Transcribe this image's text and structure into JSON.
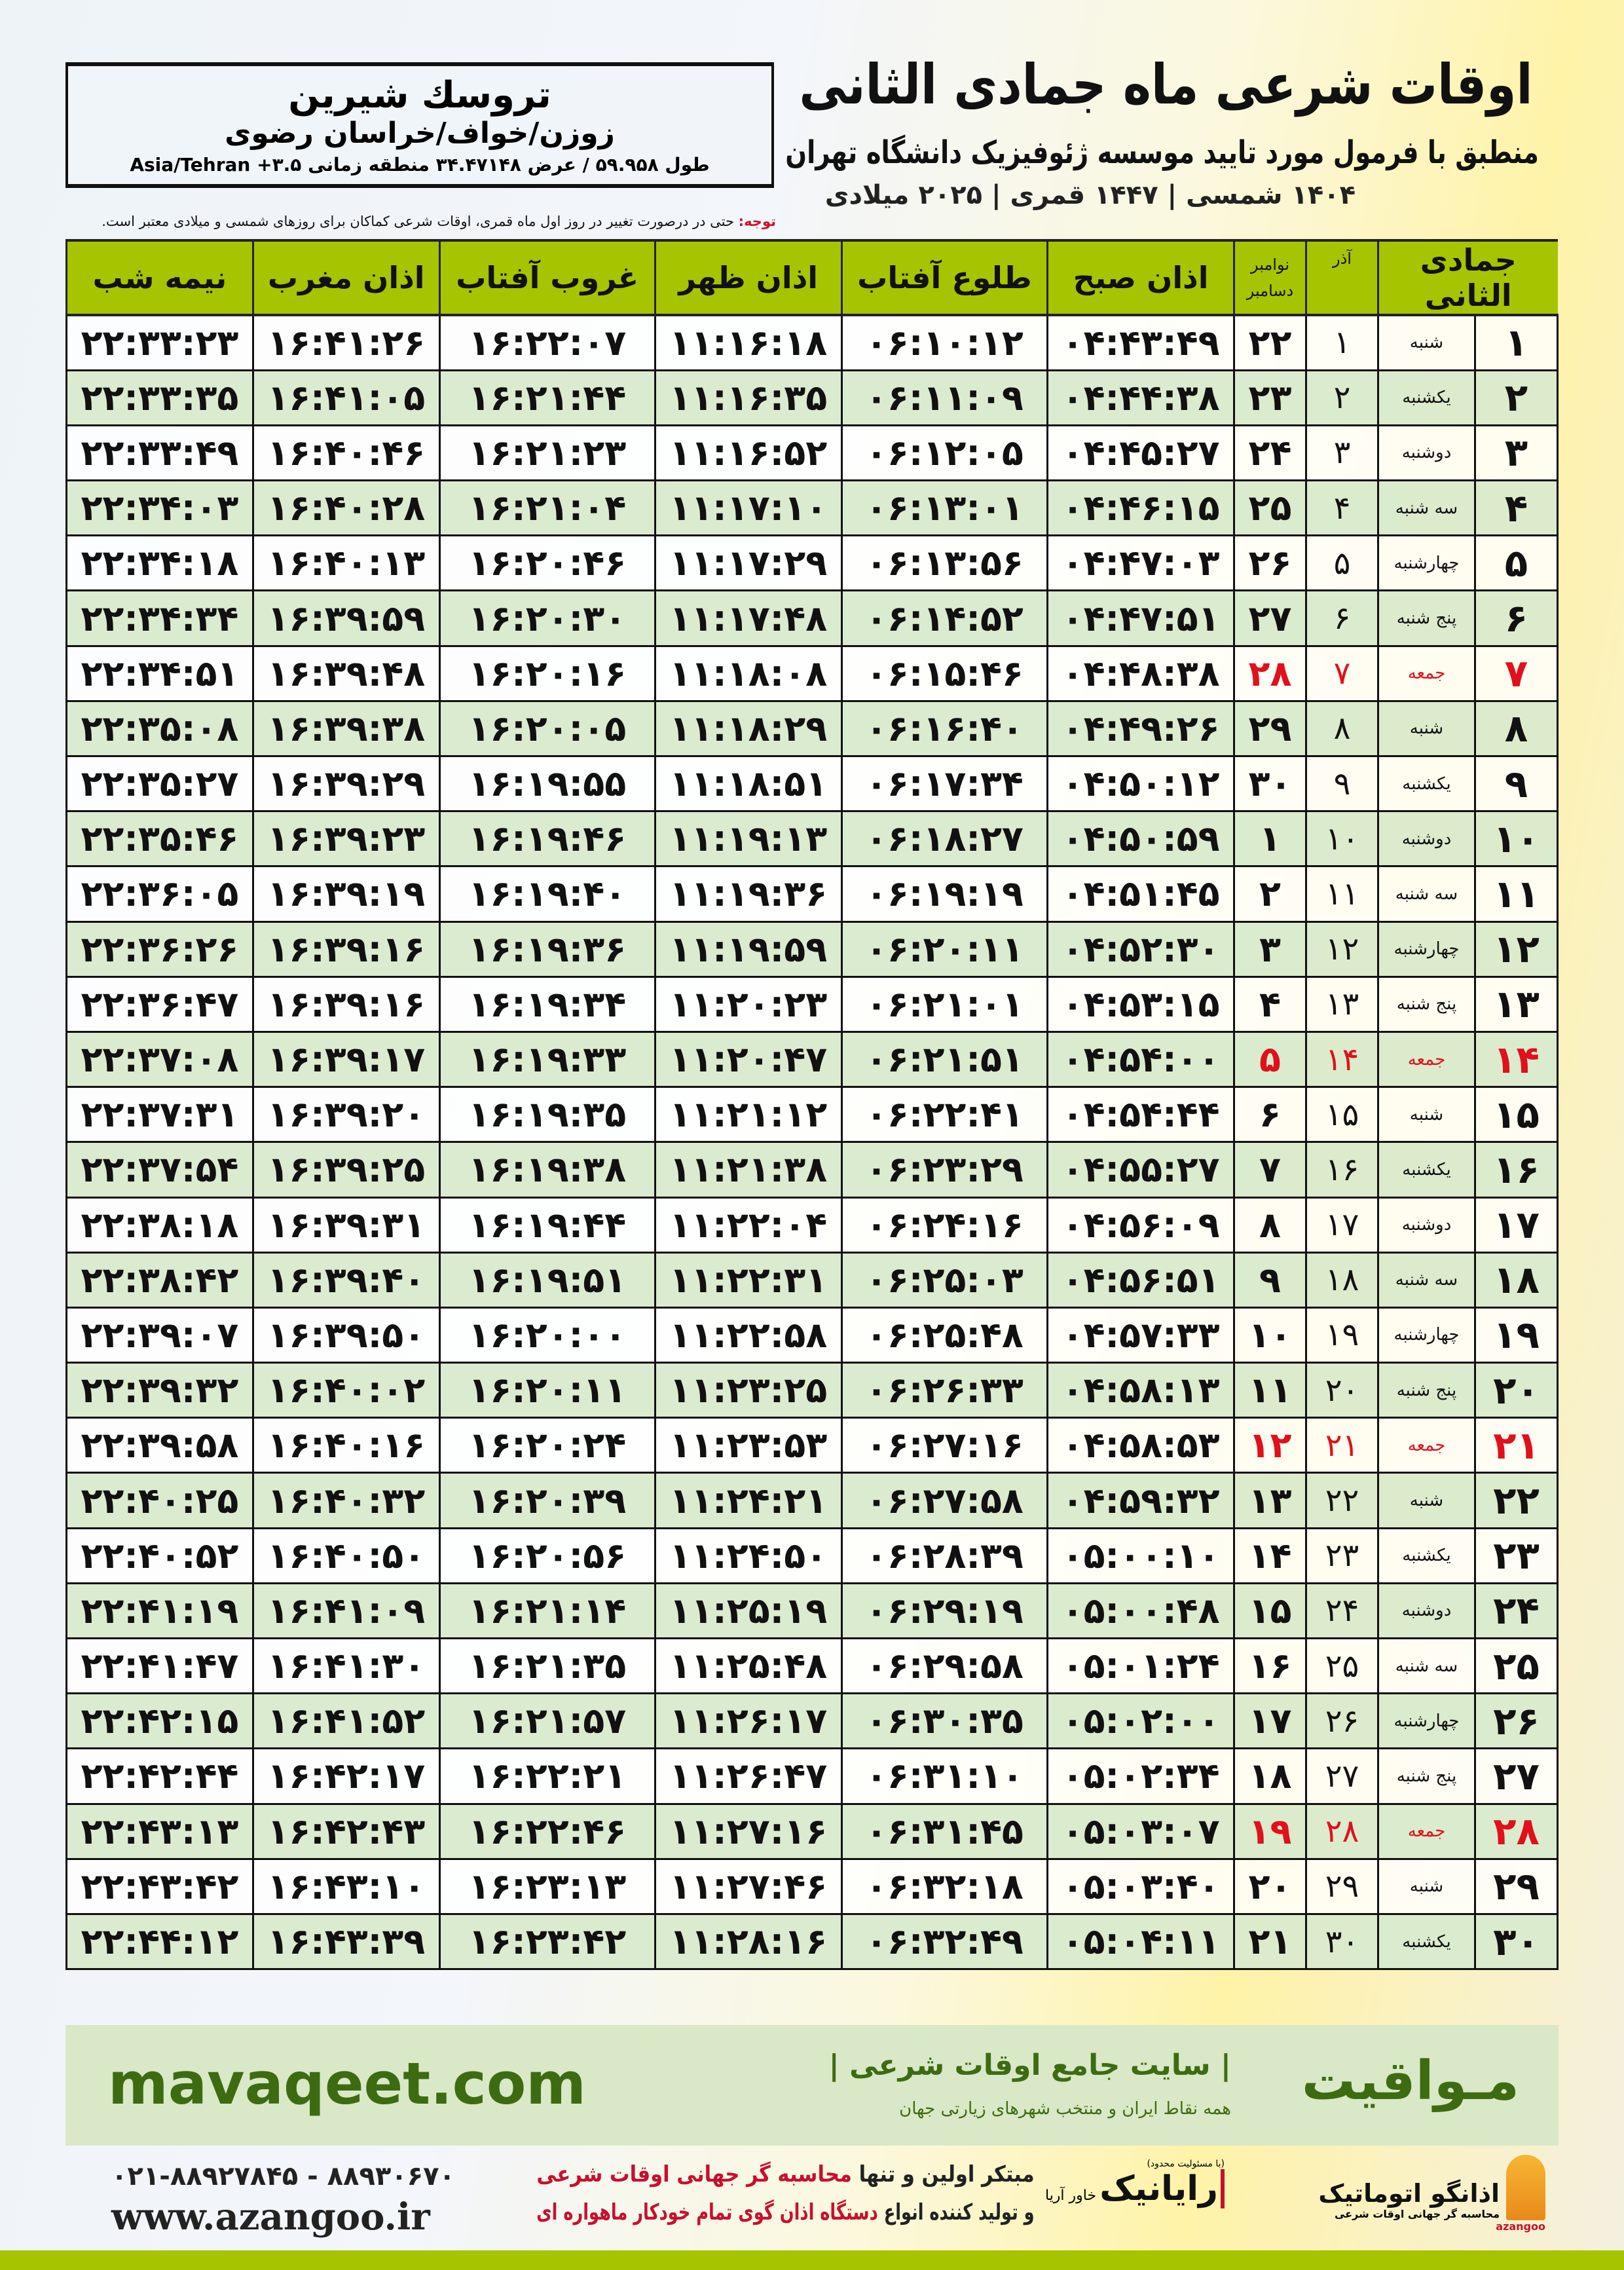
{
  "header": {
    "title": "اوقات شرعی ماه جمادی الثانی",
    "subtitle": "منطبق با فرمول مورد تایید موسسه ژئوفیزیک دانشگاه تهران",
    "dateline": "۱۴۰۴ شمسی | ۱۴۴۷ قمری | ۲۰۲۵ میلادی"
  },
  "location": {
    "city": "تروسك شيرين",
    "region": "زوزن/خواف/خراسان رضوی",
    "coords": "طول ۵۹.۹۵۸ / عرض ۳۴.۴۷۱۴۸ منطقه زمانی ۳.۵+ Asia/Tehran"
  },
  "note": {
    "label": "توجه:",
    "text": " حتی در درصورت تغییر در روز اول ماه قمری، اوقات شرعی کماکان برای روزهای شمسی و میلادی معتبر است."
  },
  "columns": {
    "hijri": "جمادی الثانی",
    "azar": "آذر",
    "greg_top": "نوامبر",
    "greg_bottom": "دسامبر",
    "sobh": "اذان صبح",
    "tolu": "طلوع آفتاب",
    "zohr": "اذان ظهر",
    "ghorub": "غروب آفتاب",
    "maghreb": "اذان مغرب",
    "nime": "نیمه شب"
  },
  "colors": {
    "header_green": "#a6c400",
    "row_alt": "#d9eacd",
    "holiday": "#e0101c",
    "footer_green": "#3d6b12"
  },
  "rows": [
    [
      "۱",
      "شنبه",
      "۱",
      "۲۲",
      "۰۴:۴۳:۴۹",
      "۰۶:۱۰:۱۲",
      "۱۱:۱۶:۱۸",
      "۱۶:۲۲:۰۷",
      "۱۶:۴۱:۲۶",
      "۲۲:۳۳:۲۳",
      false
    ],
    [
      "۲",
      "یکشنبه",
      "۲",
      "۲۳",
      "۰۴:۴۴:۳۸",
      "۰۶:۱۱:۰۹",
      "۱۱:۱۶:۳۵",
      "۱۶:۲۱:۴۴",
      "۱۶:۴۱:۰۵",
      "۲۲:۳۳:۳۵",
      false
    ],
    [
      "۳",
      "دوشنبه",
      "۳",
      "۲۴",
      "۰۴:۴۵:۲۷",
      "۰۶:۱۲:۰۵",
      "۱۱:۱۶:۵۲",
      "۱۶:۲۱:۲۳",
      "۱۶:۴۰:۴۶",
      "۲۲:۳۳:۴۹",
      false
    ],
    [
      "۴",
      "سه شنبه",
      "۴",
      "۲۵",
      "۰۴:۴۶:۱۵",
      "۰۶:۱۳:۰۱",
      "۱۱:۱۷:۱۰",
      "۱۶:۲۱:۰۴",
      "۱۶:۴۰:۲۸",
      "۲۲:۳۴:۰۳",
      false
    ],
    [
      "۵",
      "چهارشنبه",
      "۵",
      "۲۶",
      "۰۴:۴۷:۰۳",
      "۰۶:۱۳:۵۶",
      "۱۱:۱۷:۲۹",
      "۱۶:۲۰:۴۶",
      "۱۶:۴۰:۱۳",
      "۲۲:۳۴:۱۸",
      false
    ],
    [
      "۶",
      "پنج شنبه",
      "۶",
      "۲۷",
      "۰۴:۴۷:۵۱",
      "۰۶:۱۴:۵۲",
      "۱۱:۱۷:۴۸",
      "۱۶:۲۰:۳۰",
      "۱۶:۳۹:۵۹",
      "۲۲:۳۴:۳۴",
      false
    ],
    [
      "۷",
      "جمعه",
      "۷",
      "۲۸",
      "۰۴:۴۸:۳۸",
      "۰۶:۱۵:۴۶",
      "۱۱:۱۸:۰۸",
      "۱۶:۲۰:۱۶",
      "۱۶:۳۹:۴۸",
      "۲۲:۳۴:۵۱",
      true
    ],
    [
      "۸",
      "شنبه",
      "۸",
      "۲۹",
      "۰۴:۴۹:۲۶",
      "۰۶:۱۶:۴۰",
      "۱۱:۱۸:۲۹",
      "۱۶:۲۰:۰۵",
      "۱۶:۳۹:۳۸",
      "۲۲:۳۵:۰۸",
      false
    ],
    [
      "۹",
      "یکشنبه",
      "۹",
      "۳۰",
      "۰۴:۵۰:۱۲",
      "۰۶:۱۷:۳۴",
      "۱۱:۱۸:۵۱",
      "۱۶:۱۹:۵۵",
      "۱۶:۳۹:۲۹",
      "۲۲:۳۵:۲۷",
      false
    ],
    [
      "۱۰",
      "دوشنبه",
      "۱۰",
      "۱",
      "۰۴:۵۰:۵۹",
      "۰۶:۱۸:۲۷",
      "۱۱:۱۹:۱۳",
      "۱۶:۱۹:۴۶",
      "۱۶:۳۹:۲۳",
      "۲۲:۳۵:۴۶",
      false
    ],
    [
      "۱۱",
      "سه شنبه",
      "۱۱",
      "۲",
      "۰۴:۵۱:۴۵",
      "۰۶:۱۹:۱۹",
      "۱۱:۱۹:۳۶",
      "۱۶:۱۹:۴۰",
      "۱۶:۳۹:۱۹",
      "۲۲:۳۶:۰۵",
      false
    ],
    [
      "۱۲",
      "چهارشنبه",
      "۱۲",
      "۳",
      "۰۴:۵۲:۳۰",
      "۰۶:۲۰:۱۱",
      "۱۱:۱۹:۵۹",
      "۱۶:۱۹:۳۶",
      "۱۶:۳۹:۱۶",
      "۲۲:۳۶:۲۶",
      false
    ],
    [
      "۱۳",
      "پنج شنبه",
      "۱۳",
      "۴",
      "۰۴:۵۳:۱۵",
      "۰۶:۲۱:۰۱",
      "۱۱:۲۰:۲۳",
      "۱۶:۱۹:۳۴",
      "۱۶:۳۹:۱۶",
      "۲۲:۳۶:۴۷",
      false
    ],
    [
      "۱۴",
      "جمعه",
      "۱۴",
      "۵",
      "۰۴:۵۴:۰۰",
      "۰۶:۲۱:۵۱",
      "۱۱:۲۰:۴۷",
      "۱۶:۱۹:۳۳",
      "۱۶:۳۹:۱۷",
      "۲۲:۳۷:۰۸",
      true
    ],
    [
      "۱۵",
      "شنبه",
      "۱۵",
      "۶",
      "۰۴:۵۴:۴۴",
      "۰۶:۲۲:۴۱",
      "۱۱:۲۱:۱۲",
      "۱۶:۱۹:۳۵",
      "۱۶:۳۹:۲۰",
      "۲۲:۳۷:۳۱",
      false
    ],
    [
      "۱۶",
      "یکشنبه",
      "۱۶",
      "۷",
      "۰۴:۵۵:۲۷",
      "۰۶:۲۳:۲۹",
      "۱۱:۲۱:۳۸",
      "۱۶:۱۹:۳۸",
      "۱۶:۳۹:۲۵",
      "۲۲:۳۷:۵۴",
      false
    ],
    [
      "۱۷",
      "دوشنبه",
      "۱۷",
      "۸",
      "۰۴:۵۶:۰۹",
      "۰۶:۲۴:۱۶",
      "۱۱:۲۲:۰۴",
      "۱۶:۱۹:۴۴",
      "۱۶:۳۹:۳۱",
      "۲۲:۳۸:۱۸",
      false
    ],
    [
      "۱۸",
      "سه شنبه",
      "۱۸",
      "۹",
      "۰۴:۵۶:۵۱",
      "۰۶:۲۵:۰۳",
      "۱۱:۲۲:۳۱",
      "۱۶:۱۹:۵۱",
      "۱۶:۳۹:۴۰",
      "۲۲:۳۸:۴۲",
      false
    ],
    [
      "۱۹",
      "چهارشنبه",
      "۱۹",
      "۱۰",
      "۰۴:۵۷:۳۳",
      "۰۶:۲۵:۴۸",
      "۱۱:۲۲:۵۸",
      "۱۶:۲۰:۰۰",
      "۱۶:۳۹:۵۰",
      "۲۲:۳۹:۰۷",
      false
    ],
    [
      "۲۰",
      "پنج شنبه",
      "۲۰",
      "۱۱",
      "۰۴:۵۸:۱۳",
      "۰۶:۲۶:۳۳",
      "۱۱:۲۳:۲۵",
      "۱۶:۲۰:۱۱",
      "۱۶:۴۰:۰۲",
      "۲۲:۳۹:۳۲",
      false
    ],
    [
      "۲۱",
      "جمعه",
      "۲۱",
      "۱۲",
      "۰۴:۵۸:۵۳",
      "۰۶:۲۷:۱۶",
      "۱۱:۲۳:۵۳",
      "۱۶:۲۰:۲۴",
      "۱۶:۴۰:۱۶",
      "۲۲:۳۹:۵۸",
      true
    ],
    [
      "۲۲",
      "شنبه",
      "۲۲",
      "۱۳",
      "۰۴:۵۹:۳۲",
      "۰۶:۲۷:۵۸",
      "۱۱:۲۴:۲۱",
      "۱۶:۲۰:۳۹",
      "۱۶:۴۰:۳۲",
      "۲۲:۴۰:۲۵",
      false
    ],
    [
      "۲۳",
      "یکشنبه",
      "۲۳",
      "۱۴",
      "۰۵:۰۰:۱۰",
      "۰۶:۲۸:۳۹",
      "۱۱:۲۴:۵۰",
      "۱۶:۲۰:۵۶",
      "۱۶:۴۰:۵۰",
      "۲۲:۴۰:۵۲",
      false
    ],
    [
      "۲۴",
      "دوشنبه",
      "۲۴",
      "۱۵",
      "۰۵:۰۰:۴۸",
      "۰۶:۲۹:۱۹",
      "۱۱:۲۵:۱۹",
      "۱۶:۲۱:۱۴",
      "۱۶:۴۱:۰۹",
      "۲۲:۴۱:۱۹",
      false
    ],
    [
      "۲۵",
      "سه شنبه",
      "۲۵",
      "۱۶",
      "۰۵:۰۱:۲۴",
      "۰۶:۲۹:۵۸",
      "۱۱:۲۵:۴۸",
      "۱۶:۲۱:۳۵",
      "۱۶:۴۱:۳۰",
      "۲۲:۴۱:۴۷",
      false
    ],
    [
      "۲۶",
      "چهارشنبه",
      "۲۶",
      "۱۷",
      "۰۵:۰۲:۰۰",
      "۰۶:۳۰:۳۵",
      "۱۱:۲۶:۱۷",
      "۱۶:۲۱:۵۷",
      "۱۶:۴۱:۵۲",
      "۲۲:۴۲:۱۵",
      false
    ],
    [
      "۲۷",
      "پنج شنبه",
      "۲۷",
      "۱۸",
      "۰۵:۰۲:۳۴",
      "۰۶:۳۱:۱۰",
      "۱۱:۲۶:۴۷",
      "۱۶:۲۲:۲۱",
      "۱۶:۴۲:۱۷",
      "۲۲:۴۲:۴۴",
      false
    ],
    [
      "۲۸",
      "جمعه",
      "۲۸",
      "۱۹",
      "۰۵:۰۳:۰۷",
      "۰۶:۳۱:۴۵",
      "۱۱:۲۷:۱۶",
      "۱۶:۲۲:۴۶",
      "۱۶:۴۲:۴۳",
      "۲۲:۴۳:۱۳",
      true
    ],
    [
      "۲۹",
      "شنبه",
      "۲۹",
      "۲۰",
      "۰۵:۰۳:۴۰",
      "۰۶:۳۲:۱۸",
      "۱۱:۲۷:۴۶",
      "۱۶:۲۳:۱۳",
      "۱۶:۴۳:۱۰",
      "۲۲:۴۳:۴۲",
      false
    ],
    [
      "۳۰",
      "یکشنبه",
      "۳۰",
      "۲۱",
      "۰۵:۰۴:۱۱",
      "۰۶:۳۲:۴۹",
      "۱۱:۲۸:۱۶",
      "۱۶:۲۳:۴۲",
      "۱۶:۴۳:۳۹",
      "۲۲:۴۴:۱۲",
      false
    ]
  ],
  "footer": {
    "brand": "مـواقیت",
    "tagline": "| سایت جامع اوقات شرعی |",
    "tagline_sub": "همه نقاط ایران و منتخب شهرهای زیارتی جهان",
    "site": "mavaqeet.com",
    "phone": "۰۲۱-۸۸۹۲۷۸۴۵ - ۸۸۹۳۰۶۷۰",
    "web": "www.azangoo.ir",
    "promo1_a": "مبتکر اولین و تنها ",
    "promo1_b": "محاسبه گر جهانی اوقات شرعی",
    "promo2_a": "و تولید کننده انواع ",
    "promo2_b": "دستگاه اذان گوی تمام خودکار ماهواره ای",
    "logo_rayanik": "رایانیک",
    "logo_rayanik_sub": "خاور آریا",
    "logo_rayanik_top": "(با مسئولیت محدود)",
    "logo_azangoo": "اذانگو اتوماتیک",
    "logo_azangoo_sub": "محاسبه گر جهانی اوقات شرعی",
    "logo_azangoo_en": "azangoo"
  }
}
